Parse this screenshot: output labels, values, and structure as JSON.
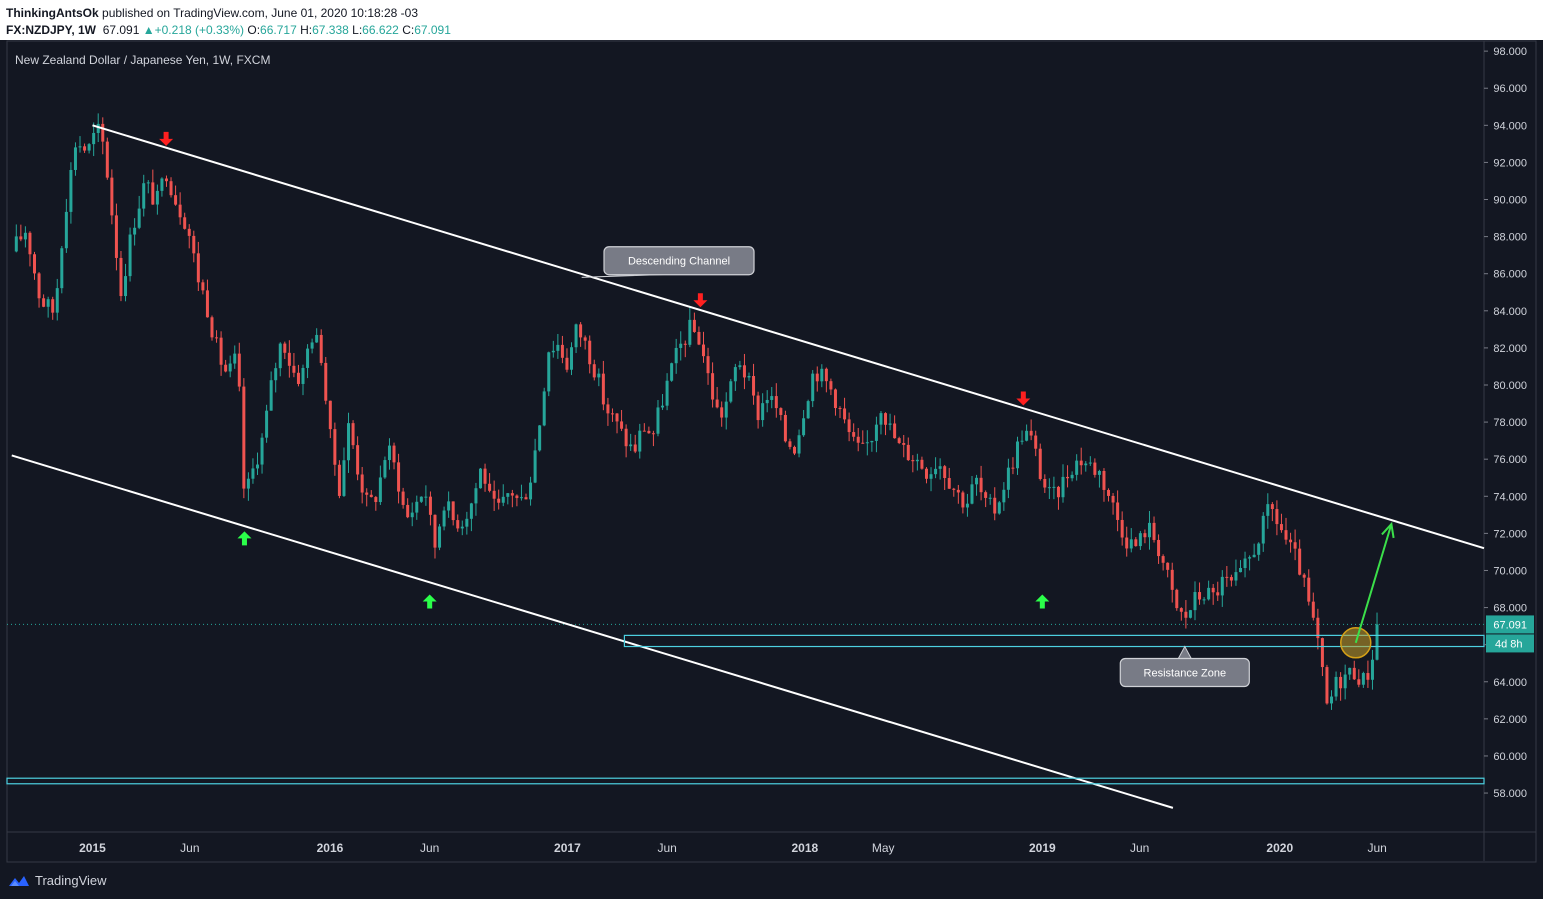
{
  "header": {
    "author": "ThinkingAntsOk",
    "published_text": "published on TradingView.com, June 01, 2020 10:18:28 -03",
    "symbol": "FX:NZDJPY, 1W",
    "last": "67.091",
    "change_arrow": "▲",
    "change": "+0.218 (+0.33%)",
    "o_label": "O:",
    "o_value": "66.717",
    "h_label": "H:",
    "h_value": "67.338",
    "l_label": "L:",
    "l_value": "66.622",
    "c_label": "C:",
    "c_value": "67.091"
  },
  "footer": {
    "brand": "TradingView",
    "logo_icon": "tradingview-logo-icon"
  },
  "chart_data": {
    "type": "candlestick",
    "title": "New Zealand Dollar / Japanese Yen, 1W, FXCM",
    "ylim": [
      55.9,
      98.6
    ],
    "y_ticks": [
      "98.000",
      "96.000",
      "94.000",
      "92.000",
      "90.000",
      "88.000",
      "86.000",
      "84.000",
      "82.000",
      "80.000",
      "78.000",
      "76.000",
      "74.000",
      "72.000",
      "70.000",
      "68.000",
      "66.000",
      "64.000",
      "62.000",
      "60.000",
      "58.000"
    ],
    "x_ticks": [
      {
        "label": "2015",
        "t": 2015.0,
        "bold": true
      },
      {
        "label": "Jun",
        "t": 2015.41,
        "bold": false
      },
      {
        "label": "2016",
        "t": 2016.0,
        "bold": true
      },
      {
        "label": "Jun",
        "t": 2016.42,
        "bold": false
      },
      {
        "label": "2017",
        "t": 2017.0,
        "bold": true
      },
      {
        "label": "Jun",
        "t": 2017.42,
        "bold": false
      },
      {
        "label": "2018",
        "t": 2018.0,
        "bold": true
      },
      {
        "label": "May",
        "t": 2018.33,
        "bold": false
      },
      {
        "label": "2019",
        "t": 2019.0,
        "bold": true
      },
      {
        "label": "Jun",
        "t": 2019.41,
        "bold": false
      },
      {
        "label": "2020",
        "t": 2020.0,
        "bold": true
      },
      {
        "label": "Jun",
        "t": 2020.41,
        "bold": false
      }
    ],
    "time_range": [
      2014.64,
      2020.86
    ],
    "price_path": [
      [
        2014.66,
        87.2
      ],
      [
        2014.72,
        88.4
      ],
      [
        2014.78,
        84.6
      ],
      [
        2014.84,
        83.9
      ],
      [
        2014.88,
        89.0
      ],
      [
        2014.93,
        93.2
      ],
      [
        2014.98,
        92.6
      ],
      [
        2015.02,
        93.8
      ],
      [
        2015.05,
        92.8
      ],
      [
        2015.08,
        89.5
      ],
      [
        2015.12,
        85.0
      ],
      [
        2015.17,
        88.6
      ],
      [
        2015.22,
        90.9
      ],
      [
        2015.27,
        89.8
      ],
      [
        2015.31,
        91.6
      ],
      [
        2015.35,
        90.0
      ],
      [
        2015.4,
        88.6
      ],
      [
        2015.44,
        86.0
      ],
      [
        2015.48,
        84.4
      ],
      [
        2015.53,
        81.6
      ],
      [
        2015.57,
        80.5
      ],
      [
        2015.61,
        81.6
      ],
      [
        2015.64,
        73.8
      ],
      [
        2015.68,
        75.6
      ],
      [
        2015.72,
        77.3
      ],
      [
        2015.76,
        80.5
      ],
      [
        2015.8,
        82.6
      ],
      [
        2015.84,
        80.8
      ],
      [
        2015.88,
        80.3
      ],
      [
        2015.92,
        82.8
      ],
      [
        2015.96,
        82.0
      ],
      [
        2016.0,
        77.2
      ],
      [
        2016.04,
        74.5
      ],
      [
        2016.08,
        77.9
      ],
      [
        2016.12,
        75.3
      ],
      [
        2016.16,
        73.4
      ],
      [
        2016.2,
        74.2
      ],
      [
        2016.24,
        76.7
      ],
      [
        2016.28,
        75.3
      ],
      [
        2016.32,
        72.7
      ],
      [
        2016.36,
        73.6
      ],
      [
        2016.4,
        74.5
      ],
      [
        2016.44,
        71.2
      ],
      [
        2016.48,
        73.8
      ],
      [
        2016.52,
        72.7
      ],
      [
        2016.56,
        72.7
      ],
      [
        2016.6,
        73.8
      ],
      [
        2016.64,
        75.7
      ],
      [
        2016.68,
        73.4
      ],
      [
        2016.72,
        73.3
      ],
      [
        2016.76,
        74.4
      ],
      [
        2016.8,
        73.6
      ],
      [
        2016.84,
        74.7
      ],
      [
        2016.88,
        77.7
      ],
      [
        2016.92,
        82.0
      ],
      [
        2016.96,
        82.2
      ],
      [
        2017.0,
        81.1
      ],
      [
        2017.04,
        83.1
      ],
      [
        2017.08,
        82.1
      ],
      [
        2017.12,
        80.7
      ],
      [
        2017.16,
        78.8
      ],
      [
        2017.2,
        78.0
      ],
      [
        2017.24,
        77.1
      ],
      [
        2017.28,
        76.4
      ],
      [
        2017.32,
        77.8
      ],
      [
        2017.36,
        77.3
      ],
      [
        2017.4,
        79.2
      ],
      [
        2017.44,
        80.9
      ],
      [
        2017.48,
        82.2
      ],
      [
        2017.52,
        83.1
      ],
      [
        2017.56,
        82.4
      ],
      [
        2017.6,
        80.0
      ],
      [
        2017.64,
        78.2
      ],
      [
        2017.68,
        79.4
      ],
      [
        2017.72,
        81.5
      ],
      [
        2017.76,
        80.2
      ],
      [
        2017.8,
        78.4
      ],
      [
        2017.84,
        79.5
      ],
      [
        2017.88,
        78.7
      ],
      [
        2017.92,
        77.0
      ],
      [
        2017.96,
        76.7
      ],
      [
        2018.0,
        79.0
      ],
      [
        2018.04,
        80.9
      ],
      [
        2018.08,
        80.3
      ],
      [
        2018.12,
        79.6
      ],
      [
        2018.16,
        78.2
      ],
      [
        2018.2,
        76.9
      ],
      [
        2018.24,
        76.3
      ],
      [
        2018.28,
        77.2
      ],
      [
        2018.32,
        79.0
      ],
      [
        2018.36,
        77.6
      ],
      [
        2018.4,
        76.6
      ],
      [
        2018.44,
        76.3
      ],
      [
        2018.48,
        75.9
      ],
      [
        2018.52,
        75.3
      ],
      [
        2018.56,
        76.0
      ],
      [
        2018.6,
        75.1
      ],
      [
        2018.64,
        74.2
      ],
      [
        2018.68,
        73.6
      ],
      [
        2018.72,
        74.9
      ],
      [
        2018.76,
        73.5
      ],
      [
        2018.8,
        73.3
      ],
      [
        2018.84,
        74.7
      ],
      [
        2018.88,
        76.1
      ],
      [
        2018.92,
        77.6
      ],
      [
        2018.96,
        76.9
      ],
      [
        2019.0,
        74.8
      ],
      [
        2019.04,
        73.8
      ],
      [
        2019.08,
        74.6
      ],
      [
        2019.12,
        75.6
      ],
      [
        2019.16,
        76.0
      ],
      [
        2019.2,
        75.7
      ],
      [
        2019.24,
        75.3
      ],
      [
        2019.28,
        74.1
      ],
      [
        2019.32,
        72.7
      ],
      [
        2019.36,
        71.6
      ],
      [
        2019.4,
        71.3
      ],
      [
        2019.44,
        72.4
      ],
      [
        2019.48,
        71.6
      ],
      [
        2019.52,
        70.0
      ],
      [
        2019.56,
        68.0
      ],
      [
        2019.6,
        67.4
      ],
      [
        2019.64,
        68.4
      ],
      [
        2019.68,
        68.8
      ],
      [
        2019.72,
        68.6
      ],
      [
        2019.76,
        69.4
      ],
      [
        2019.8,
        69.2
      ],
      [
        2019.84,
        69.8
      ],
      [
        2019.88,
        70.8
      ],
      [
        2019.92,
        72.1
      ],
      [
        2019.96,
        73.4
      ],
      [
        2020.0,
        72.4
      ],
      [
        2020.04,
        71.2
      ],
      [
        2020.08,
        70.3
      ],
      [
        2020.12,
        68.2
      ],
      [
        2020.16,
        66.1
      ],
      [
        2020.2,
        62.5
      ],
      [
        2020.24,
        64.0
      ],
      [
        2020.28,
        64.4
      ],
      [
        2020.32,
        64.6
      ],
      [
        2020.36,
        63.9
      ],
      [
        2020.4,
        66.0
      ],
      [
        2020.42,
        67.1
      ]
    ],
    "last_price": 67.091,
    "countdown": "4d 8h",
    "channel_upper": [
      [
        2015.0,
        94.0
      ],
      [
        2020.86,
        71.2
      ]
    ],
    "channel_lower": [
      [
        2014.66,
        76.2
      ],
      [
        2019.55,
        57.2
      ]
    ],
    "resistance_zone": {
      "from_t": 2017.24,
      "y_top": 66.5,
      "y_bottom": 65.9
    },
    "support_zone": {
      "y_top": 58.8,
      "y_bottom": 58.5
    },
    "projection_arrow": [
      [
        2020.32,
        66.1
      ],
      [
        2020.47,
        72.5
      ]
    ],
    "highlight_circle": [
      2020.32,
      66.1
    ],
    "down_markers": [
      [
        2015.31,
        93.0
      ],
      [
        2017.56,
        84.3
      ],
      [
        2018.92,
        79.0
      ]
    ],
    "up_markers": [
      [
        2015.64,
        72.0
      ],
      [
        2016.42,
        68.6
      ],
      [
        2019.0,
        68.6
      ]
    ],
    "annotations": [
      {
        "text": "Descending Channel",
        "t": 2017.47,
        "y": 86.7,
        "pointer_to": [
          2017.06,
          85.8
        ]
      },
      {
        "text": "Resistance Zone",
        "t": 2019.6,
        "y": 64.5,
        "pointer_to": [
          2019.6,
          65.9
        ]
      }
    ]
  }
}
